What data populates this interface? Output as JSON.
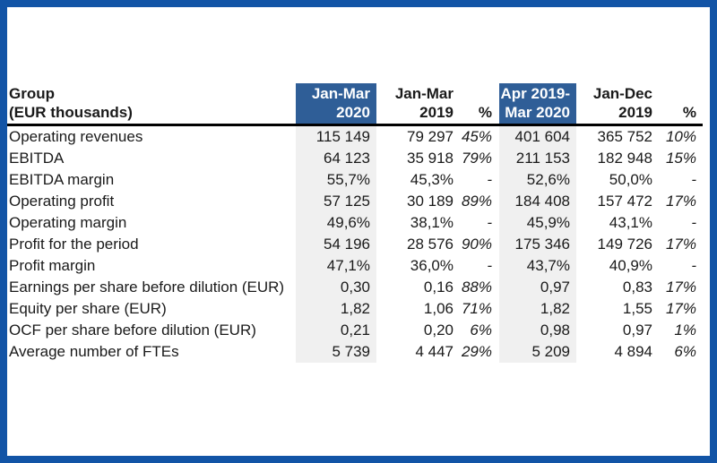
{
  "page": {
    "background": "#FFFFFF",
    "frame_color": "#1254A6"
  },
  "colors": {
    "header_highlight": "#2F5E97",
    "highlight_text": "#FFFFFF",
    "column_shade": "#F0F0F0",
    "text": "#1A1A1A",
    "header_divider": "#000000"
  },
  "table": {
    "columns": [
      {
        "id": "group-label",
        "line1": "Group",
        "line2": "(EUR thousands)",
        "highlight": false
      },
      {
        "id": "jan-mar-2020",
        "line1": "Jan-Mar",
        "line2": "2020",
        "highlight": true
      },
      {
        "id": "jan-mar-2019",
        "line1": "Jan-Mar",
        "line2": "2019",
        "highlight": false
      },
      {
        "id": "pct-change-1",
        "line1": "",
        "line2": "%",
        "highlight": false
      },
      {
        "id": "apr-2019-mar-2020",
        "line1": "Apr 2019-",
        "line2": "Mar 2020",
        "highlight": true
      },
      {
        "id": "jan-dec-2019",
        "line1": "Jan-Dec",
        "line2": "2019",
        "highlight": false
      },
      {
        "id": "pct-change-2",
        "line1": "",
        "line2": "%",
        "highlight": false
      }
    ],
    "rows": [
      {
        "label": "Operating revenues",
        "values": [
          "115 149",
          "79 297",
          "45%",
          "401 604",
          "365 752",
          "10%"
        ]
      },
      {
        "label": "EBITDA",
        "values": [
          "64 123",
          "35 918",
          "79%",
          "211 153",
          "182 948",
          "15%"
        ]
      },
      {
        "label": "EBITDA margin",
        "values": [
          "55,7%",
          "45,3%",
          "-",
          "52,6%",
          "50,0%",
          "-"
        ]
      },
      {
        "label": "Operating profit",
        "values": [
          "57 125",
          "30 189",
          "89%",
          "184 408",
          "157 472",
          "17%"
        ]
      },
      {
        "label": "Operating margin",
        "values": [
          "49,6%",
          "38,1%",
          "-",
          "45,9%",
          "43,1%",
          "-"
        ]
      },
      {
        "label": "Profit for the period",
        "values": [
          "54 196",
          "28 576",
          "90%",
          "175 346",
          "149 726",
          "17%"
        ]
      },
      {
        "label": "Profit margin",
        "values": [
          "47,1%",
          "36,0%",
          "-",
          "43,7%",
          "40,9%",
          "-"
        ]
      },
      {
        "label": "Earnings per share before dilution (EUR)",
        "values": [
          "0,30",
          "0,16",
          "88%",
          "0,97",
          "0,83",
          "17%"
        ]
      },
      {
        "label": "Equity per share (EUR)",
        "values": [
          "1,82",
          "1,06",
          "71%",
          "1,82",
          "1,55",
          "17%"
        ]
      },
      {
        "label": "OCF per share before dilution (EUR)",
        "values": [
          "0,21",
          "0,20",
          "6%",
          "0,98",
          "0,97",
          "1%"
        ]
      },
      {
        "label": "Average number of FTEs",
        "values": [
          "5 739",
          "4 447",
          "29%",
          "5 209",
          "4 894",
          "6%"
        ]
      }
    ]
  }
}
